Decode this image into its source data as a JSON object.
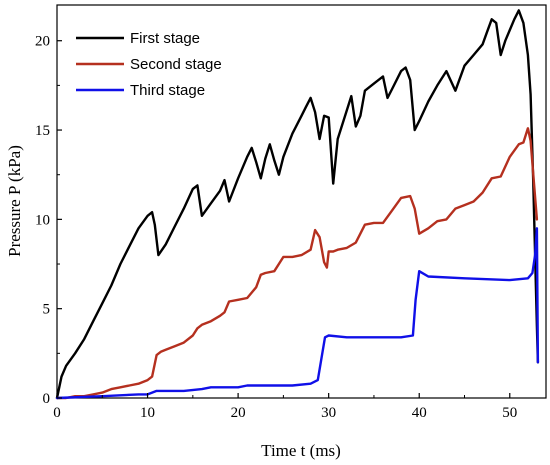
{
  "chart_data": {
    "type": "line",
    "xlabel": "Time t (ms)",
    "ylabel": "Pressure P (kPa)",
    "xlim": [
      0,
      54
    ],
    "ylim": [
      0,
      22
    ],
    "xticks": [
      0,
      10,
      20,
      30,
      40,
      50
    ],
    "yticks": [
      0,
      5,
      10,
      15,
      20
    ],
    "grid": false,
    "legend_position": "top-left",
    "series": [
      {
        "name": "First stage",
        "color": "#000000",
        "x": [
          0,
          0.5,
          1,
          2,
          3,
          4,
          5,
          6,
          7,
          8,
          9,
          10,
          10.5,
          10.8,
          11.2,
          12,
          13,
          14,
          15,
          15.5,
          16,
          17,
          18,
          18.5,
          19,
          20,
          21,
          21.5,
          22,
          22.5,
          23,
          23.5,
          24,
          24.5,
          25,
          26,
          27,
          27.5,
          28,
          28.5,
          29,
          29.5,
          30,
          30.5,
          31,
          32,
          32.5,
          33,
          33.5,
          34,
          35,
          36,
          36.5,
          37,
          38,
          38.5,
          39,
          39.5,
          40,
          41,
          42,
          43,
          44,
          45,
          46,
          47,
          47.5,
          48,
          48.5,
          49,
          49.5,
          50,
          50.5,
          51,
          51.5,
          52,
          52.3,
          52.6,
          52.8,
          53,
          53.1
        ],
        "y": [
          0,
          1.2,
          1.8,
          2.5,
          3.3,
          4.3,
          5.3,
          6.3,
          7.5,
          8.5,
          9.5,
          10.2,
          10.4,
          9.7,
          8.0,
          8.6,
          9.6,
          10.6,
          11.7,
          11.9,
          10.2,
          10.9,
          11.6,
          12.2,
          11.0,
          12.3,
          13.5,
          14.0,
          13.2,
          12.3,
          13.4,
          14.2,
          13.3,
          12.5,
          13.5,
          14.8,
          15.8,
          16.3,
          16.8,
          16.0,
          14.5,
          15.8,
          15.7,
          12.0,
          14.5,
          16.1,
          16.9,
          15.2,
          15.8,
          17.2,
          17.6,
          18.0,
          16.8,
          17.3,
          18.3,
          18.5,
          17.8,
          15.0,
          15.5,
          16.6,
          17.5,
          18.3,
          17.2,
          18.6,
          19.2,
          19.8,
          20.5,
          21.2,
          21.0,
          19.2,
          20.0,
          20.6,
          21.2,
          21.7,
          21.0,
          19.2,
          17.0,
          12.0,
          8.0,
          4.0,
          2.0
        ]
      },
      {
        "name": "Second stage",
        "color": "#b5301f",
        "x": [
          0,
          1,
          2,
          3,
          4,
          5,
          6,
          7,
          8,
          9,
          10,
          10.5,
          11,
          11.5,
          12,
          13,
          14,
          15,
          15.5,
          16,
          17,
          18,
          18.5,
          19,
          20,
          21,
          22,
          22.5,
          23,
          24,
          25,
          26,
          27,
          28,
          28.5,
          29,
          29.5,
          29.8,
          30,
          30.5,
          31,
          32,
          33,
          34,
          35,
          36,
          37,
          38,
          39,
          39.5,
          40,
          41,
          42,
          43,
          44,
          45,
          46,
          47,
          48,
          49,
          50,
          51,
          51.5,
          52,
          52.3,
          52.6,
          53
        ],
        "y": [
          0,
          0,
          0.1,
          0.1,
          0.2,
          0.3,
          0.5,
          0.6,
          0.7,
          0.8,
          1.0,
          1.2,
          2.4,
          2.6,
          2.7,
          2.9,
          3.1,
          3.5,
          3.9,
          4.1,
          4.3,
          4.6,
          4.8,
          5.4,
          5.5,
          5.6,
          6.2,
          6.9,
          7.0,
          7.1,
          7.9,
          7.9,
          8.0,
          8.3,
          9.4,
          9.0,
          7.6,
          7.3,
          8.2,
          8.2,
          8.3,
          8.4,
          8.7,
          9.7,
          9.8,
          9.8,
          10.5,
          11.2,
          11.3,
          10.6,
          9.2,
          9.5,
          9.9,
          10.0,
          10.6,
          10.8,
          11.0,
          11.5,
          12.3,
          12.4,
          13.5,
          14.2,
          14.3,
          15.1,
          14.4,
          12.5,
          10.0
        ]
      },
      {
        "name": "Third stage",
        "color": "#1010e8",
        "x": [
          0,
          5,
          9,
          10,
          10.5,
          11,
          14,
          16,
          17,
          20,
          21,
          24,
          26,
          28,
          28.8,
          29.3,
          29.6,
          30,
          32,
          34,
          36,
          38,
          39.3,
          39.6,
          40,
          41,
          45,
          50,
          52,
          52.5,
          52.8,
          53,
          53.1
        ],
        "y": [
          0,
          0.1,
          0.2,
          0.2,
          0.3,
          0.4,
          0.4,
          0.5,
          0.6,
          0.6,
          0.7,
          0.7,
          0.7,
          0.8,
          1.0,
          2.5,
          3.4,
          3.5,
          3.4,
          3.4,
          3.4,
          3.4,
          3.5,
          5.5,
          7.1,
          6.8,
          6.7,
          6.6,
          6.7,
          7.0,
          8.0,
          9.5,
          2.0
        ]
      }
    ]
  }
}
